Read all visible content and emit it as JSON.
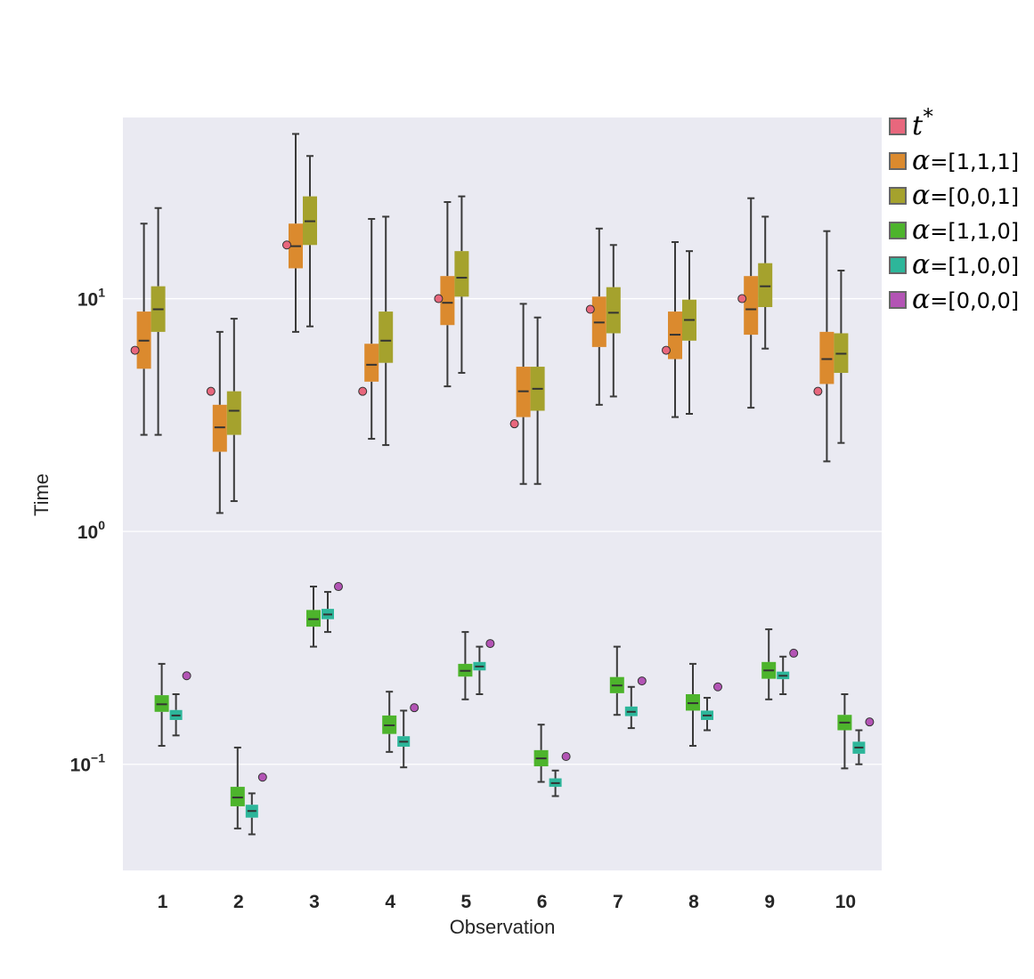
{
  "chart_data": {
    "type": "boxplot",
    "xlabel": "Observation",
    "ylabel": "Time",
    "yscale": "log",
    "ylim": [
      0.035,
      60
    ],
    "y_ticks": [
      {
        "value": 0.1,
        "base": "10",
        "exp": "−1"
      },
      {
        "value": 1,
        "base": "10",
        "exp": "0"
      },
      {
        "value": 10,
        "base": "10",
        "exp": "1"
      }
    ],
    "categories": [
      "1",
      "2",
      "3",
      "4",
      "5",
      "6",
      "7",
      "8",
      "9",
      "10"
    ],
    "legend": [
      {
        "id": "tstar",
        "symbol": "t",
        "sup": "*",
        "text": "",
        "color": "#e8677d"
      },
      {
        "id": "a111",
        "symbol": "α",
        "text": "=[1,1,1]",
        "color": "#db8a2e"
      },
      {
        "id": "a001",
        "symbol": "α",
        "text": "=[0,0,1]",
        "color": "#a5a22d"
      },
      {
        "id": "a110",
        "symbol": "α",
        "text": "=[1,1,0]",
        "color": "#4db42c"
      },
      {
        "id": "a100",
        "symbol": "α",
        "text": "=[1,0,0]",
        "color": "#2db69a"
      },
      {
        "id": "a000",
        "symbol": "α",
        "text": "=[0,0,0]",
        "color": "#b354b5"
      }
    ],
    "t_star": [
      6.0,
      4.0,
      17.0,
      4.0,
      10.0,
      2.9,
      9.0,
      6.0,
      10.0,
      4.0
    ],
    "alpha_000": [
      0.24,
      0.088,
      0.58,
      0.175,
      0.33,
      0.108,
      0.228,
      0.215,
      0.3,
      0.152
    ],
    "series": [
      {
        "name": "α=[1,1,1]",
        "color": "#db8a2e",
        "offset": -16,
        "width": 16,
        "boxes": [
          {
            "whislo": 2.6,
            "q1": 5.0,
            "med": 6.6,
            "q3": 8.8,
            "whishi": 21
          },
          {
            "whislo": 1.2,
            "q1": 2.2,
            "med": 2.8,
            "q3": 3.5,
            "whishi": 7.2
          },
          {
            "whislo": 7.2,
            "q1": 13.5,
            "med": 16.8,
            "q3": 21,
            "whishi": 51
          },
          {
            "whislo": 2.5,
            "q1": 4.4,
            "med": 5.2,
            "q3": 6.4,
            "whishi": 22
          },
          {
            "whislo": 4.2,
            "q1": 7.7,
            "med": 9.6,
            "q3": 12.5,
            "whishi": 26
          },
          {
            "whislo": 1.6,
            "q1": 3.1,
            "med": 4.0,
            "q3": 5.1,
            "whishi": 9.5
          },
          {
            "whislo": 3.5,
            "q1": 6.2,
            "med": 7.9,
            "q3": 10.2,
            "whishi": 20
          },
          {
            "whislo": 3.1,
            "q1": 5.5,
            "med": 7.0,
            "q3": 8.8,
            "whishi": 17.5
          },
          {
            "whislo": 3.4,
            "q1": 7.0,
            "med": 9.0,
            "q3": 12.5,
            "whishi": 27
          },
          {
            "whislo": 2.0,
            "q1": 4.3,
            "med": 5.5,
            "q3": 7.2,
            "whishi": 19.5
          }
        ]
      },
      {
        "name": "α=[0,0,1]",
        "color": "#a5a22d",
        "offset": 0,
        "width": 16,
        "boxes": [
          {
            "whislo": 2.6,
            "q1": 7.2,
            "med": 9.0,
            "q3": 11.3,
            "whishi": 24.5
          },
          {
            "whislo": 1.35,
            "q1": 2.6,
            "med": 3.3,
            "q3": 4.0,
            "whishi": 8.2
          },
          {
            "whislo": 7.6,
            "q1": 17.0,
            "med": 21.5,
            "q3": 27.5,
            "whishi": 41
          },
          {
            "whislo": 2.35,
            "q1": 5.3,
            "med": 6.6,
            "q3": 8.8,
            "whishi": 22.5
          },
          {
            "whislo": 4.8,
            "q1": 10.2,
            "med": 12.3,
            "q3": 16,
            "whishi": 27.5
          },
          {
            "whislo": 1.6,
            "q1": 3.3,
            "med": 4.1,
            "q3": 5.1,
            "whishi": 8.3
          },
          {
            "whislo": 3.8,
            "q1": 7.1,
            "med": 8.7,
            "q3": 11.2,
            "whishi": 17
          },
          {
            "whislo": 3.2,
            "q1": 6.6,
            "med": 8.1,
            "q3": 9.9,
            "whishi": 16
          },
          {
            "whislo": 6.1,
            "q1": 9.2,
            "med": 11.3,
            "q3": 14.2,
            "whishi": 22.5
          },
          {
            "whislo": 2.4,
            "q1": 4.8,
            "med": 5.8,
            "q3": 7.1,
            "whishi": 13.2
          }
        ]
      },
      {
        "name": "α=[1,1,0]",
        "color": "#4db42c",
        "offset": 4,
        "width": 16,
        "boxes": [
          {
            "whislo": 0.12,
            "q1": 0.168,
            "med": 0.181,
            "q3": 0.198,
            "whishi": 0.27
          },
          {
            "whislo": 0.053,
            "q1": 0.066,
            "med": 0.072,
            "q3": 0.08,
            "whishi": 0.118
          },
          {
            "whislo": 0.32,
            "q1": 0.39,
            "med": 0.42,
            "q3": 0.46,
            "whishi": 0.58
          },
          {
            "whislo": 0.113,
            "q1": 0.135,
            "med": 0.147,
            "q3": 0.162,
            "whishi": 0.205
          },
          {
            "whislo": 0.19,
            "q1": 0.238,
            "med": 0.252,
            "q3": 0.27,
            "whishi": 0.37
          },
          {
            "whislo": 0.084,
            "q1": 0.098,
            "med": 0.106,
            "q3": 0.115,
            "whishi": 0.148
          },
          {
            "whislo": 0.163,
            "q1": 0.202,
            "med": 0.218,
            "q3": 0.237,
            "whishi": 0.32
          },
          {
            "whislo": 0.12,
            "q1": 0.17,
            "med": 0.183,
            "q3": 0.2,
            "whishi": 0.27
          },
          {
            "whislo": 0.19,
            "q1": 0.233,
            "med": 0.253,
            "q3": 0.275,
            "whishi": 0.38
          },
          {
            "whislo": 0.096,
            "q1": 0.14,
            "med": 0.151,
            "q3": 0.163,
            "whishi": 0.2
          }
        ]
      },
      {
        "name": "α=[1,0,0]",
        "color": "#2db69a",
        "offset": 20,
        "width": 14,
        "boxes": [
          {
            "whislo": 0.133,
            "q1": 0.155,
            "med": 0.162,
            "q3": 0.171,
            "whishi": 0.2
          },
          {
            "whislo": 0.05,
            "q1": 0.059,
            "med": 0.063,
            "q3": 0.067,
            "whishi": 0.075
          },
          {
            "whislo": 0.37,
            "q1": 0.42,
            "med": 0.44,
            "q3": 0.465,
            "whishi": 0.55
          },
          {
            "whislo": 0.097,
            "q1": 0.119,
            "med": 0.125,
            "q3": 0.132,
            "whishi": 0.17
          },
          {
            "whislo": 0.2,
            "q1": 0.253,
            "med": 0.263,
            "q3": 0.275,
            "whishi": 0.32
          },
          {
            "whislo": 0.073,
            "q1": 0.08,
            "med": 0.083,
            "q3": 0.087,
            "whishi": 0.094
          },
          {
            "whislo": 0.143,
            "q1": 0.161,
            "med": 0.168,
            "q3": 0.177,
            "whishi": 0.215
          },
          {
            "whislo": 0.14,
            "q1": 0.155,
            "med": 0.162,
            "q3": 0.17,
            "whishi": 0.193
          },
          {
            "whislo": 0.2,
            "q1": 0.232,
            "med": 0.24,
            "q3": 0.25,
            "whishi": 0.29
          },
          {
            "whislo": 0.1,
            "q1": 0.111,
            "med": 0.118,
            "q3": 0.125,
            "whishi": 0.14
          }
        ]
      }
    ]
  }
}
